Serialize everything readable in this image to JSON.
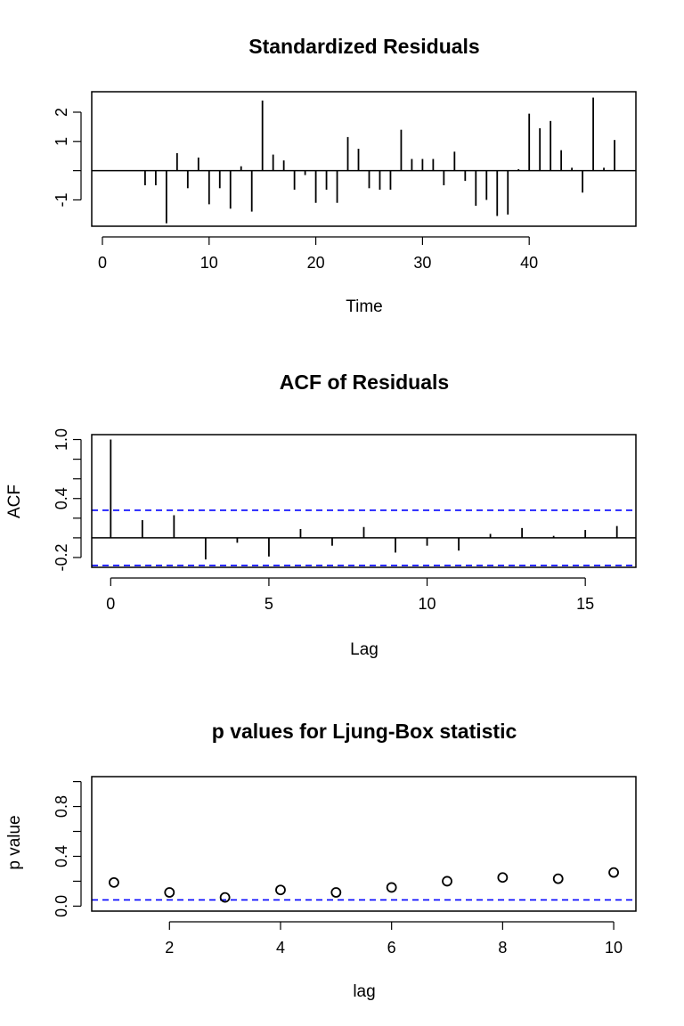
{
  "chart_data": [
    {
      "type": "bar",
      "title": "Standardized Residuals",
      "xlabel": "Time",
      "ylabel": "",
      "xlim": [
        -1,
        50
      ],
      "ylim": [
        -1.9,
        2.7
      ],
      "xticks": [
        0,
        10,
        20,
        30,
        40
      ],
      "yticks": [
        -1,
        0,
        1,
        2
      ],
      "ytick_labels": [
        "-1",
        "",
        "1",
        "2"
      ],
      "zero_line": true,
      "x": [
        0,
        1,
        2,
        3,
        4,
        5,
        6,
        7,
        8,
        9,
        10,
        11,
        12,
        13,
        14,
        15,
        16,
        17,
        18,
        19,
        20,
        21,
        22,
        23,
        24,
        25,
        26,
        27,
        28,
        29,
        30,
        31,
        32,
        33,
        34,
        35,
        36,
        37,
        38,
        39,
        40,
        41,
        42,
        43,
        44,
        45,
        46,
        47,
        48
      ],
      "values": [
        0,
        0,
        0,
        0,
        -0.5,
        -0.5,
        -1.8,
        0.6,
        -0.6,
        0.45,
        -1.15,
        -0.6,
        -1.3,
        0.15,
        -1.4,
        2.4,
        0.55,
        0.35,
        -0.65,
        -0.15,
        -1.1,
        -0.65,
        -1.1,
        1.15,
        0.75,
        -0.6,
        -0.65,
        -0.65,
        1.4,
        0.4,
        0.4,
        0.4,
        -0.5,
        0.65,
        -0.35,
        -1.2,
        -1.0,
        -1.55,
        -1.5,
        0.05,
        1.95,
        1.45,
        1.7,
        0.7,
        0.1,
        -0.75,
        2.5,
        0.1,
        1.05
      ]
    },
    {
      "type": "bar",
      "title": "ACF of Residuals",
      "xlabel": "Lag",
      "ylabel": "ACF",
      "xlim": [
        -0.6,
        16.6
      ],
      "ylim": [
        -0.3,
        1.05
      ],
      "xticks": [
        0,
        5,
        10,
        15
      ],
      "yticks": [
        -0.2,
        0,
        0.2,
        0.4,
        0.6,
        0.8,
        1.0
      ],
      "ytick_labels": [
        "-0.2",
        "",
        "",
        "0.4",
        "",
        "",
        "1.0"
      ],
      "zero_line": true,
      "confidence_bounds": [
        0.28,
        -0.28
      ],
      "confidence_color": "#0000ff",
      "x": [
        0,
        1,
        2,
        3,
        4,
        5,
        6,
        7,
        8,
        9,
        10,
        11,
        12,
        13,
        14,
        15,
        16
      ],
      "values": [
        1.0,
        0.18,
        0.23,
        -0.22,
        -0.05,
        -0.19,
        0.09,
        -0.08,
        0.11,
        -0.15,
        -0.08,
        -0.13,
        0.04,
        0.1,
        0.02,
        0.08,
        0.12
      ]
    },
    {
      "type": "scatter",
      "title": "p values for Ljung-Box statistic",
      "xlabel": "lag",
      "ylabel": "p value",
      "xlim": [
        0.6,
        10.4
      ],
      "ylim": [
        -0.04,
        1.04
      ],
      "xticks": [
        2,
        4,
        6,
        8,
        10
      ],
      "yticks": [
        0,
        0.2,
        0.4,
        0.6,
        0.8,
        1.0
      ],
      "ytick_labels": [
        "0.0",
        "",
        "0.4",
        "",
        "0.8",
        ""
      ],
      "significance_line": 0.05,
      "significance_color": "#0000ff",
      "x": [
        1,
        2,
        3,
        4,
        5,
        6,
        7,
        8,
        9,
        10
      ],
      "values": [
        0.19,
        0.11,
        0.07,
        0.13,
        0.11,
        0.15,
        0.2,
        0.23,
        0.22,
        0.27
      ]
    }
  ]
}
